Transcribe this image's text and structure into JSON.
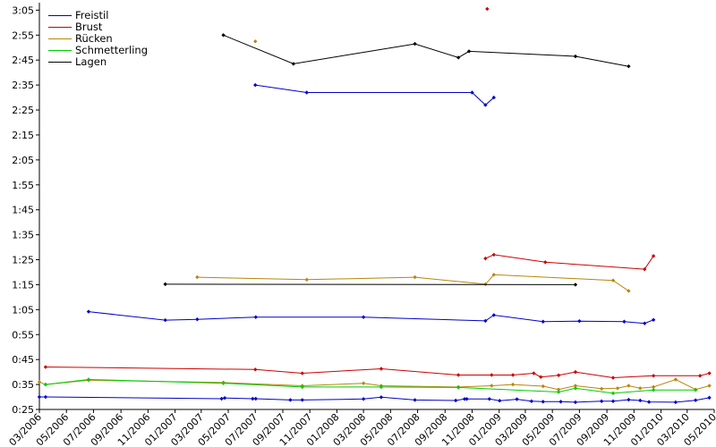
{
  "chart_data": {
    "type": "line",
    "x_ticks": [
      "03/2006",
      "05/2006",
      "07/2006",
      "09/2006",
      "11/2006",
      "01/2007",
      "03/2007",
      "05/2007",
      "07/2007",
      "09/2007",
      "11/2007",
      "01/2008",
      "03/2008",
      "05/2008",
      "07/2008",
      "09/2008",
      "11/2008",
      "01/2009",
      "03/2009",
      "05/2009",
      "07/2009",
      "09/2009",
      "11/2009",
      "01/2010",
      "03/2010",
      "05/2010"
    ],
    "y_ticks": [
      "0:25",
      "0:35",
      "0:45",
      "0:55",
      "1:05",
      "1:15",
      "1:25",
      "1:35",
      "1:45",
      "1:55",
      "2:05",
      "2:15",
      "2:25",
      "2:35",
      "2:45",
      "2:55",
      "3:05"
    ],
    "xlim": [
      "2006-03-01",
      "2010-05-01"
    ],
    "ylim_seconds": [
      25,
      188
    ],
    "grid": false,
    "legend_position": "top-left",
    "series": [
      {
        "name": "Freistil",
        "color": "#0000cc",
        "lines": [
          [
            [
              "2006-03-01",
              30.0
            ],
            [
              "2006-03-15",
              30.0
            ],
            [
              "2007-04-16",
              29.3
            ],
            [
              "2007-04-23",
              29.6
            ],
            [
              "2007-06-25",
              29.3
            ],
            [
              "2007-07-02",
              29.3
            ],
            [
              "2007-09-18",
              28.8
            ],
            [
              "2007-10-15",
              28.8
            ],
            [
              "2008-03-01",
              29.2
            ],
            [
              "2008-04-10",
              29.9
            ],
            [
              "2008-06-25",
              28.8
            ],
            [
              "2008-09-25",
              28.6
            ],
            [
              "2008-10-15",
              29.2
            ],
            [
              "2008-10-20",
              29.2
            ],
            [
              "2008-12-10",
              29.2
            ],
            [
              "2009-01-02",
              28.5
            ],
            [
              "2009-02-10",
              29.1
            ],
            [
              "2009-03-15",
              28.3
            ],
            [
              "2009-04-10",
              28.1
            ],
            [
              "2009-05-20",
              28.1
            ],
            [
              "2009-06-22",
              27.9
            ],
            [
              "2009-08-20",
              28.3
            ],
            [
              "2009-09-15",
              28.3
            ],
            [
              "2009-10-20",
              28.9
            ],
            [
              "2009-11-15",
              28.6
            ],
            [
              "2009-12-05",
              28.0
            ],
            [
              "2010-02-03",
              27.9
            ],
            [
              "2010-03-20",
              28.7
            ],
            [
              "2010-04-20",
              29.7
            ]
          ],
          [
            [
              "2006-06-20",
              64.2
            ],
            [
              "2006-12-10",
              60.8
            ],
            [
              "2007-02-20",
              61.1
            ],
            [
              "2007-07-02",
              62.0
            ],
            [
              "2008-03-01",
              62.0
            ],
            [
              "2008-12-01",
              60.5
            ],
            [
              "2008-12-20",
              62.8
            ],
            [
              "2009-04-10",
              60.2
            ],
            [
              "2009-07-01",
              60.4
            ],
            [
              "2009-10-10",
              60.2
            ],
            [
              "2009-11-25",
              59.5
            ],
            [
              "2009-12-15",
              60.9
            ]
          ],
          [
            [
              "2007-07-01",
              155
            ],
            [
              "2007-10-25",
              152
            ],
            [
              "2008-11-01",
              152
            ],
            [
              "2008-12-01",
              147
            ],
            [
              "2008-12-20",
              150
            ]
          ]
        ]
      },
      {
        "name": "Brust",
        "color": "#cc0000",
        "lines": [
          [
            [
              "2006-03-15",
              42.0
            ],
            [
              "2007-07-01",
              41.0
            ],
            [
              "2007-10-15",
              39.5
            ],
            [
              "2008-04-10",
              41.3
            ],
            [
              "2008-10-01",
              38.8
            ],
            [
              "2008-12-15",
              38.8
            ],
            [
              "2009-02-01",
              38.8
            ],
            [
              "2009-03-20",
              39.5
            ],
            [
              "2009-04-05",
              38.0
            ],
            [
              "2009-05-15",
              38.7
            ],
            [
              "2009-06-22",
              40.0
            ],
            [
              "2009-09-15",
              37.7
            ],
            [
              "2009-12-15",
              38.5
            ],
            [
              "2010-03-30",
              38.5
            ],
            [
              "2010-04-20",
              39.5
            ]
          ],
          [
            [
              "2008-12-01",
              85.5
            ],
            [
              "2008-12-20",
              87.0
            ],
            [
              "2009-04-15",
              84.0
            ],
            [
              "2009-11-25",
              81.2
            ],
            [
              "2009-12-15",
              86.5
            ]
          ],
          [
            [
              "2008-12-05",
              185.5
            ]
          ]
        ]
      },
      {
        "name": "Rücken",
        "color": "#b8860b",
        "lines": [
          [
            [
              "2006-03-01",
              36.0
            ],
            [
              "2006-03-15",
              35.0
            ],
            [
              "2006-06-20",
              36.7
            ],
            [
              "2007-04-20",
              35.8
            ],
            [
              "2007-10-15",
              34.5
            ],
            [
              "2008-03-01",
              35.5
            ],
            [
              "2008-04-10",
              34.5
            ],
            [
              "2008-10-01",
              34.0
            ],
            [
              "2008-12-15",
              34.5
            ],
            [
              "2009-02-01",
              35.0
            ],
            [
              "2009-04-10",
              34.3
            ],
            [
              "2009-05-15",
              33.0
            ],
            [
              "2009-06-22",
              34.5
            ],
            [
              "2009-08-20",
              33.3
            ],
            [
              "2009-09-25",
              33.5
            ],
            [
              "2009-10-20",
              34.5
            ],
            [
              "2009-11-15",
              33.5
            ],
            [
              "2009-12-15",
              34.0
            ],
            [
              "2010-02-03",
              37.0
            ],
            [
              "2010-03-20",
              33.0
            ],
            [
              "2010-04-20",
              34.5
            ]
          ],
          [
            [
              "2007-02-20",
              78.0
            ],
            [
              "2007-10-25",
              77.0
            ],
            [
              "2008-06-25",
              78.0
            ],
            [
              "2008-12-01",
              75.2
            ],
            [
              "2008-12-20",
              79.0
            ],
            [
              "2009-09-15",
              76.7
            ],
            [
              "2009-10-20",
              72.5
            ]
          ],
          [
            [
              "2007-07-01",
              172.5
            ]
          ]
        ]
      },
      {
        "name": "Schmetterling",
        "color": "#00cc00",
        "lines": [
          [
            [
              "2006-03-15",
              35.0
            ],
            [
              "2006-06-20",
              37.0
            ],
            [
              "2007-04-20",
              35.5
            ],
            [
              "2007-10-15",
              34.0
            ],
            [
              "2008-04-10",
              34.0
            ],
            [
              "2008-10-01",
              33.8
            ],
            [
              "2009-05-15",
              32.0
            ],
            [
              "2009-06-22",
              33.5
            ],
            [
              "2009-09-15",
              31.5
            ],
            [
              "2009-12-15",
              32.8
            ],
            [
              "2010-03-20",
              32.8
            ]
          ]
        ]
      },
      {
        "name": "Lagen",
        "color": "#000000",
        "lines": [
          [
            [
              "2007-04-20",
              175.0
            ],
            [
              "2007-09-25",
              163.5
            ],
            [
              "2008-06-25",
              171.5
            ],
            [
              "2008-10-01",
              166.0
            ],
            [
              "2008-10-25",
              168.5
            ],
            [
              "2009-06-22",
              166.5
            ],
            [
              "2009-10-20",
              162.5
            ]
          ],
          [
            [
              "2006-12-10",
              75.2
            ],
            [
              "2009-06-22",
              75.0
            ]
          ]
        ]
      }
    ]
  }
}
